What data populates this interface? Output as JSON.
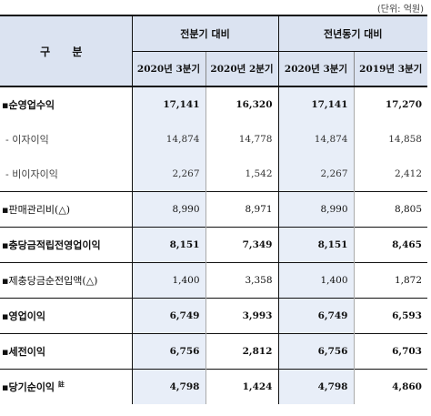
{
  "unit": "(단위: 억원)",
  "header": {
    "category": "구 분",
    "group1": "전분기 대비",
    "group2": "전년동기 대비",
    "periods": [
      "2020년 3분기",
      "2020년 2분기",
      "2020년 3분기",
      "2019년 3분기"
    ]
  },
  "rows": [
    {
      "label": "▪순영업수익",
      "values": [
        "17,141",
        "16,320",
        "17,141",
        "17,270"
      ],
      "style": "main"
    },
    {
      "label": "- 이자이익",
      "values": [
        "14,874",
        "14,778",
        "14,874",
        "14,858"
      ],
      "style": "sub"
    },
    {
      "label": "- 비이자이익",
      "values": [
        "2,267",
        "1,542",
        "2,267",
        "2,412"
      ],
      "style": "sub"
    },
    {
      "label": "▪판매관리비(△)",
      "values": [
        "8,990",
        "8,971",
        "8,990",
        "8,805"
      ],
      "style": "plain"
    },
    {
      "label": "▪충당금적립전영업이익",
      "values": [
        "8,151",
        "7,349",
        "8,151",
        "8,465"
      ],
      "style": "main"
    },
    {
      "label": "▪제충당금순전입액(△)",
      "values": [
        "1,400",
        "3,358",
        "1,400",
        "1,872"
      ],
      "style": "plain"
    },
    {
      "label": "▪영업이익",
      "values": [
        "6,749",
        "3,993",
        "6,749",
        "6,593"
      ],
      "style": "main"
    },
    {
      "label": "▪세전이익",
      "values": [
        "6,756",
        "2,812",
        "6,756",
        "6,703"
      ],
      "style": "main"
    },
    {
      "label": "▪당기순이익",
      "note": "註",
      "values": [
        "4,798",
        "1,424",
        "4,798",
        "4,860"
      ],
      "style": "main"
    }
  ]
}
